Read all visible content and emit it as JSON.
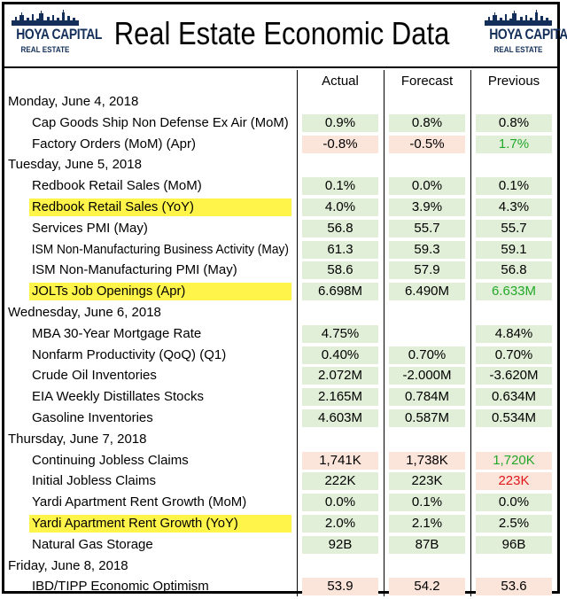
{
  "header": {
    "title": "Real Estate Economic Data",
    "logo_line1": "HOYA CAPITAL",
    "logo_line2": "REAL ESTATE"
  },
  "columns": {
    "actual": "Actual",
    "forecast": "Forecast",
    "previous": "Previous"
  },
  "colors": {
    "positive_bg": "#e2efd8",
    "negative_bg": "#fbe4d9",
    "highlight": "#fff44a",
    "green_text": "#22a82a",
    "red_text": "#e0161b"
  },
  "sections": [
    {
      "day": "Monday, June 4, 2018",
      "rows": [
        {
          "label": "Cap Goods Ship Non Defense Ex Air (MoM)",
          "highlight": false,
          "actual": "0.9%",
          "forecast": "0.8%",
          "previous": "0.8%"
        },
        {
          "label": "Factory Orders (MoM) (Apr)",
          "highlight": false,
          "actual": "-0.8%",
          "forecast": "-0.5%",
          "previous": "1.7%"
        }
      ]
    },
    {
      "day": "Tuesday, June 5, 2018",
      "rows": [
        {
          "label": "Redbook Retail Sales (MoM)",
          "highlight": false,
          "actual": "0.1%",
          "forecast": "0.0%",
          "previous": "0.1%"
        },
        {
          "label": "Redbook Retail Sales (YoY)",
          "highlight": true,
          "actual": "4.0%",
          "forecast": "3.9%",
          "previous": "4.3%"
        },
        {
          "label": "Services PMI (May)",
          "highlight": false,
          "actual": "56.8",
          "forecast": "55.7",
          "previous": "55.7"
        },
        {
          "label": "ISM Non-Manufacturing Business Activity (May)",
          "highlight": false,
          "actual": "61.3",
          "forecast": "59.3",
          "previous": "59.1"
        },
        {
          "label": "ISM Non-Manufacturing PMI (May)",
          "highlight": false,
          "actual": "58.6",
          "forecast": "57.9",
          "previous": "56.8"
        },
        {
          "label": "JOLTs Job Openings (Apr)",
          "highlight": true,
          "actual": "6.698M",
          "forecast": "6.490M",
          "previous": "6.633M"
        }
      ]
    },
    {
      "day": "Wednesday, June 6, 2018",
      "rows": [
        {
          "label": "MBA 30-Year Mortgage Rate",
          "highlight": false,
          "actual": "4.75%",
          "forecast": "",
          "previous": "4.84%"
        },
        {
          "label": "Nonfarm Productivity (QoQ) (Q1)",
          "highlight": false,
          "actual": "0.40%",
          "forecast": "0.70%",
          "previous": "0.70%"
        },
        {
          "label": "Crude Oil Inventories",
          "highlight": false,
          "actual": "2.072M",
          "forecast": "-2.000M",
          "previous": "-3.620M"
        },
        {
          "label": "EIA Weekly Distillates Stocks",
          "highlight": false,
          "actual": "2.165M",
          "forecast": "0.784M",
          "previous": "0.634M"
        },
        {
          "label": "Gasoline Inventories",
          "highlight": false,
          "actual": "4.603M",
          "forecast": "0.587M",
          "previous": "0.534M"
        }
      ]
    },
    {
      "day": "Thursday, June 7, 2018",
      "rows": [
        {
          "label": "Continuing Jobless Claims",
          "highlight": false,
          "actual": "1,741K",
          "forecast": "1,738K",
          "previous": "1,720K"
        },
        {
          "label": "Initial Jobless Claims",
          "highlight": false,
          "actual": "222K",
          "forecast": "223K",
          "previous": "223K"
        },
        {
          "label": "Yardi Apartment Rent Growth (MoM)",
          "highlight": false,
          "actual": "0.0%",
          "forecast": "0.1%",
          "previous": "0.0%"
        },
        {
          "label": "Yardi Apartment Rent Growth (YoY)",
          "highlight": true,
          "actual": "2.0%",
          "forecast": "2.1%",
          "previous": "2.5%"
        },
        {
          "label": "Natural Gas Storage",
          "highlight": false,
          "actual": "92B",
          "forecast": "87B",
          "previous": "96B"
        }
      ]
    },
    {
      "day": "Friday, June 8, 2018",
      "rows": [
        {
          "label": "IBD/TIPP Economic Optimism",
          "highlight": false,
          "actual": "53.9",
          "forecast": "54.2",
          "previous": "53.6"
        }
      ]
    }
  ]
}
